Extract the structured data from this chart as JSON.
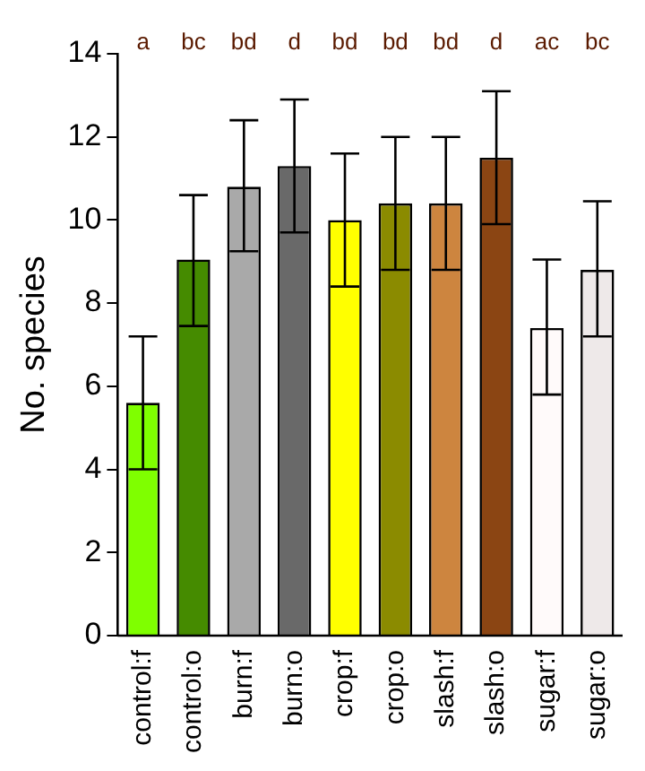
{
  "chart_data": {
    "type": "bar",
    "ylabel": "No. species",
    "categories": [
      "control:f",
      "control:o",
      "burn:f",
      "burn:o",
      "crop:f",
      "crop:o",
      "slash:f",
      "slash:o",
      "sugar:f",
      "sugar:o"
    ],
    "values": [
      5.6,
      9.05,
      10.8,
      11.3,
      10.0,
      10.4,
      10.4,
      11.5,
      7.4,
      8.8
    ],
    "colors": [
      "#7fff00",
      "#458b00",
      "#a9a9a9",
      "#696969",
      "#ffff00",
      "#8b8b00",
      "#cd853f",
      "#8b4513",
      "#fffafa",
      "#eee9e9"
    ],
    "errors": [
      [
        4.0,
        7.2
      ],
      [
        7.45,
        10.6
      ],
      [
        9.25,
        12.4
      ],
      [
        9.7,
        12.9
      ],
      [
        8.4,
        11.6
      ],
      [
        8.8,
        12.0
      ],
      [
        8.8,
        12.0
      ],
      [
        9.9,
        13.1
      ],
      [
        5.8,
        9.05
      ],
      [
        7.2,
        10.45
      ]
    ],
    "annotations": [
      "a",
      "bc",
      "bd",
      "d",
      "bd",
      "bd",
      "bd",
      "d",
      "ac",
      "bc"
    ],
    "ylim": [
      0,
      14
    ],
    "yticks": [
      0,
      2,
      4,
      6,
      8,
      10,
      12,
      14
    ],
    "grid": false,
    "legend": false
  }
}
